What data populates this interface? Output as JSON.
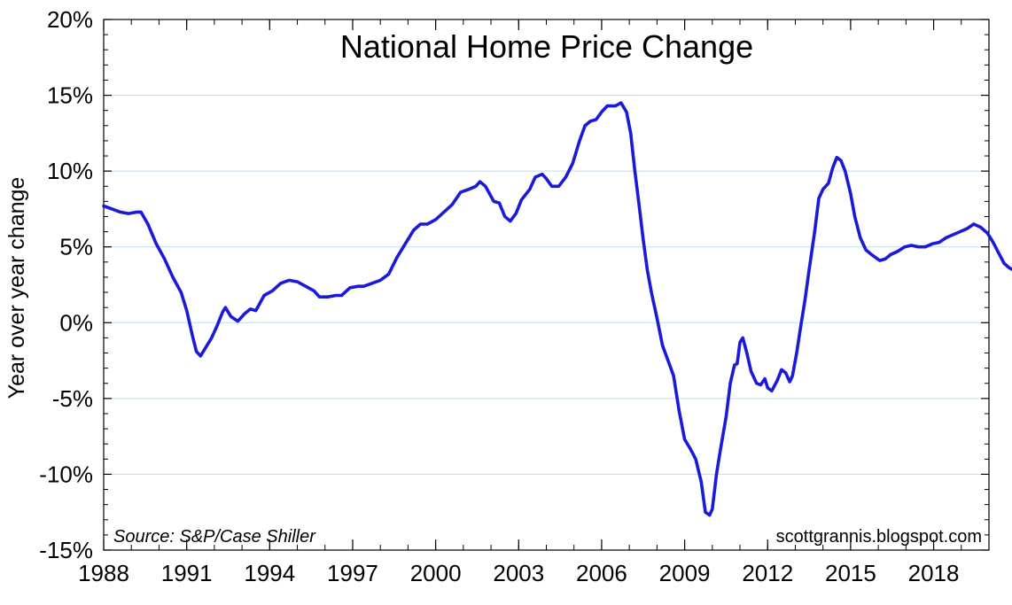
{
  "chart_data": {
    "type": "line",
    "title": "National Home Price Change",
    "ylabel": "Year over year change",
    "xlabel": "",
    "source_note": "Source: S&P/Case Shiller",
    "credit": "scottgrannis.blogspot.com",
    "xlim": [
      1988,
      2020
    ],
    "ylim": [
      -15,
      20
    ],
    "x_tick_labels": [
      "1988",
      "1991",
      "1994",
      "1997",
      "2000",
      "2003",
      "2006",
      "2009",
      "2012",
      "2015",
      "2018"
    ],
    "x_tick_values": [
      1988,
      1991,
      1994,
      1997,
      2000,
      2003,
      2006,
      2009,
      2012,
      2015,
      2018
    ],
    "y_tick_labels": [
      "20%",
      "15%",
      "10%",
      "5%",
      "0%",
      "-5%",
      "-10%",
      "-15%"
    ],
    "y_tick_values": [
      20,
      15,
      10,
      5,
      0,
      -5,
      -10,
      -15
    ],
    "grid": "horizontal",
    "line_color": "#1a1adb",
    "series": [
      {
        "points": [
          [
            1988.0,
            7.7
          ],
          [
            1988.3,
            7.5
          ],
          [
            1988.6,
            7.3
          ],
          [
            1988.9,
            7.2
          ],
          [
            1989.2,
            7.3
          ],
          [
            1989.35,
            7.3
          ],
          [
            1989.6,
            6.5
          ],
          [
            1989.9,
            5.2
          ],
          [
            1990.2,
            4.2
          ],
          [
            1990.5,
            3.0
          ],
          [
            1990.8,
            2.0
          ],
          [
            1991.0,
            0.8
          ],
          [
            1991.2,
            -0.8
          ],
          [
            1991.35,
            -1.9
          ],
          [
            1991.5,
            -2.2
          ],
          [
            1991.7,
            -1.6
          ],
          [
            1991.9,
            -1.0
          ],
          [
            1992.1,
            -0.2
          ],
          [
            1992.3,
            0.7
          ],
          [
            1992.4,
            1.0
          ],
          [
            1992.6,
            0.4
          ],
          [
            1992.85,
            0.1
          ],
          [
            1993.1,
            0.6
          ],
          [
            1993.3,
            0.9
          ],
          [
            1993.5,
            0.8
          ],
          [
            1993.8,
            1.8
          ],
          [
            1994.1,
            2.1
          ],
          [
            1994.4,
            2.6
          ],
          [
            1994.7,
            2.8
          ],
          [
            1995.0,
            2.7
          ],
          [
            1995.3,
            2.4
          ],
          [
            1995.6,
            2.1
          ],
          [
            1995.8,
            1.7
          ],
          [
            1996.1,
            1.7
          ],
          [
            1996.4,
            1.8
          ],
          [
            1996.6,
            1.8
          ],
          [
            1996.9,
            2.3
          ],
          [
            1997.2,
            2.4
          ],
          [
            1997.4,
            2.4
          ],
          [
            1997.7,
            2.6
          ],
          [
            1998.0,
            2.8
          ],
          [
            1998.3,
            3.2
          ],
          [
            1998.6,
            4.3
          ],
          [
            1998.9,
            5.2
          ],
          [
            1999.2,
            6.1
          ],
          [
            1999.45,
            6.5
          ],
          [
            1999.7,
            6.5
          ],
          [
            2000.0,
            6.8
          ],
          [
            2000.3,
            7.3
          ],
          [
            2000.6,
            7.8
          ],
          [
            2000.9,
            8.6
          ],
          [
            2001.2,
            8.8
          ],
          [
            2001.45,
            9.0
          ],
          [
            2001.6,
            9.3
          ],
          [
            2001.8,
            9.0
          ],
          [
            2002.1,
            8.0
          ],
          [
            2002.3,
            7.9
          ],
          [
            2002.5,
            7.0
          ],
          [
            2002.7,
            6.7
          ],
          [
            2002.9,
            7.2
          ],
          [
            2003.1,
            8.1
          ],
          [
            2003.4,
            8.8
          ],
          [
            2003.6,
            9.6
          ],
          [
            2003.85,
            9.8
          ],
          [
            2004.0,
            9.5
          ],
          [
            2004.2,
            9.0
          ],
          [
            2004.45,
            9.0
          ],
          [
            2004.7,
            9.6
          ],
          [
            2004.95,
            10.5
          ],
          [
            2005.2,
            12.0
          ],
          [
            2005.4,
            13.0
          ],
          [
            2005.6,
            13.3
          ],
          [
            2005.8,
            13.4
          ],
          [
            2006.0,
            13.9
          ],
          [
            2006.2,
            14.3
          ],
          [
            2006.5,
            14.3
          ],
          [
            2006.7,
            14.5
          ],
          [
            2006.9,
            13.9
          ],
          [
            2007.05,
            12.5
          ],
          [
            2007.2,
            10.0
          ],
          [
            2007.35,
            7.8
          ],
          [
            2007.5,
            5.5
          ],
          [
            2007.65,
            3.5
          ],
          [
            2007.8,
            2.0
          ],
          [
            2008.0,
            0.3
          ],
          [
            2008.2,
            -1.5
          ],
          [
            2008.4,
            -2.5
          ],
          [
            2008.6,
            -3.5
          ],
          [
            2008.8,
            -5.8
          ],
          [
            2009.0,
            -7.7
          ],
          [
            2009.2,
            -8.3
          ],
          [
            2009.4,
            -9.0
          ],
          [
            2009.6,
            -10.5
          ],
          [
            2009.75,
            -12.5
          ],
          [
            2009.9,
            -12.7
          ],
          [
            2010.0,
            -12.3
          ],
          [
            2010.15,
            -10.0
          ],
          [
            2010.3,
            -8.3
          ],
          [
            2010.5,
            -6.2
          ],
          [
            2010.65,
            -4.0
          ],
          [
            2010.8,
            -2.8
          ],
          [
            2010.9,
            -2.7
          ],
          [
            2011.0,
            -1.3
          ],
          [
            2011.1,
            -1.0
          ],
          [
            2011.25,
            -2.0
          ],
          [
            2011.4,
            -3.2
          ],
          [
            2011.6,
            -4.0
          ],
          [
            2011.75,
            -4.1
          ],
          [
            2011.9,
            -3.7
          ],
          [
            2012.0,
            -4.3
          ],
          [
            2012.15,
            -4.5
          ],
          [
            2012.35,
            -3.8
          ],
          [
            2012.5,
            -3.1
          ],
          [
            2012.65,
            -3.3
          ],
          [
            2012.8,
            -3.9
          ],
          [
            2012.9,
            -3.5
          ],
          [
            2013.05,
            -2.0
          ],
          [
            2013.2,
            -0.2
          ],
          [
            2013.35,
            1.5
          ],
          [
            2013.5,
            3.5
          ],
          [
            2013.7,
            6.0
          ],
          [
            2013.85,
            8.2
          ],
          [
            2014.0,
            8.8
          ],
          [
            2014.2,
            9.2
          ],
          [
            2014.35,
            10.2
          ],
          [
            2014.5,
            10.9
          ],
          [
            2014.65,
            10.7
          ],
          [
            2014.8,
            10.0
          ],
          [
            2015.0,
            8.5
          ],
          [
            2015.15,
            7.0
          ],
          [
            2015.35,
            5.6
          ],
          [
            2015.55,
            4.8
          ],
          [
            2015.75,
            4.5
          ],
          [
            2015.9,
            4.3
          ],
          [
            2016.05,
            4.1
          ],
          [
            2016.25,
            4.2
          ],
          [
            2016.45,
            4.5
          ],
          [
            2016.7,
            4.7
          ],
          [
            2016.95,
            5.0
          ],
          [
            2017.2,
            5.1
          ],
          [
            2017.45,
            5.0
          ],
          [
            2017.7,
            5.0
          ],
          [
            2017.95,
            5.2
          ],
          [
            2018.2,
            5.3
          ],
          [
            2018.45,
            5.6
          ],
          [
            2018.7,
            5.8
          ],
          [
            2018.95,
            6.0
          ],
          [
            2019.2,
            6.2
          ],
          [
            2019.45,
            6.5
          ],
          [
            2019.7,
            6.3
          ],
          [
            2019.95,
            5.9
          ],
          [
            2020.15,
            5.3
          ],
          [
            2020.35,
            4.6
          ],
          [
            2020.55,
            3.9
          ],
          [
            2020.75,
            3.6
          ],
          [
            2020.95,
            3.4
          ],
          [
            2021.1,
            3.2
          ]
        ]
      }
    ]
  }
}
